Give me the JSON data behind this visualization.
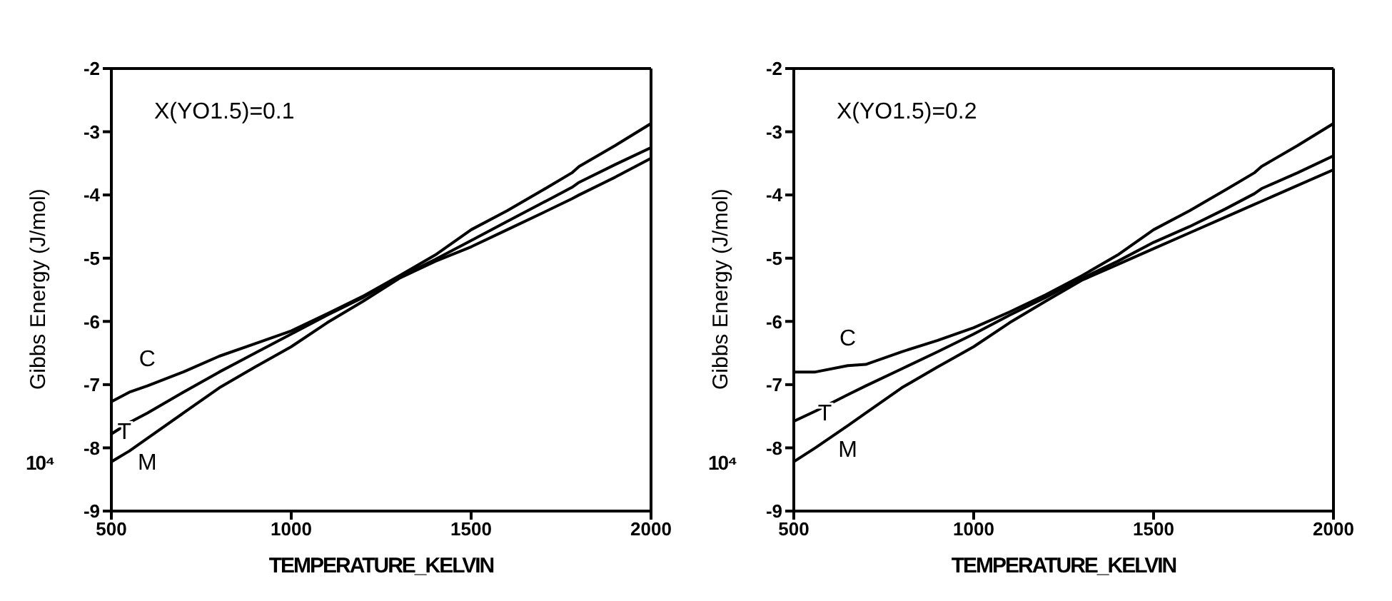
{
  "chart_data": [
    {
      "type": "line",
      "xlabel": "TEMPERATURE_KELVIN",
      "ylabel": "Gibbs Energy (J/mol)",
      "annotations": [
        "X(YO1.5)=0.1",
        "10⁴"
      ],
      "x": [
        500,
        550,
        600,
        700,
        800,
        900,
        1000,
        1100,
        1200,
        1300,
        1400,
        1500,
        1600,
        1700,
        1780,
        1800,
        1900,
        2000
      ],
      "xlim": [
        500,
        2000
      ],
      "xticks": [
        500,
        1000,
        1500,
        2000
      ],
      "ylim": [
        -9,
        -2
      ],
      "yticks": [
        -9,
        -8,
        -7,
        -6,
        -5,
        -4,
        -3,
        -2
      ],
      "marker": "none",
      "line_style": "solid",
      "series": [
        {
          "name": "C",
          "color": "#000000",
          "values": [
            -7.27,
            -7.12,
            -7.02,
            -6.8,
            -6.55,
            -6.35,
            -6.15,
            -5.88,
            -5.6,
            -5.28,
            -4.95,
            -4.55,
            -4.25,
            -3.92,
            -3.65,
            -3.55,
            -3.22,
            -2.87
          ]
        },
        {
          "name": "T",
          "color": "#000000",
          "values": [
            -7.78,
            -7.6,
            -7.45,
            -7.12,
            -6.8,
            -6.5,
            -6.2,
            -5.9,
            -5.62,
            -5.3,
            -5.02,
            -4.72,
            -4.42,
            -4.12,
            -3.88,
            -3.8,
            -3.52,
            -3.25
          ]
        },
        {
          "name": "M",
          "color": "#000000",
          "values": [
            -8.22,
            -8.05,
            -7.85,
            -7.45,
            -7.05,
            -6.72,
            -6.4,
            -6.02,
            -5.68,
            -5.32,
            -5.05,
            -4.82,
            -4.55,
            -4.28,
            -4.06,
            -4.0,
            -3.72,
            -3.42
          ]
        }
      ]
    },
    {
      "type": "line",
      "xlabel": "TEMPERATURE_KELVIN",
      "ylabel": "Gibbs Energy (J/mol)",
      "annotations": [
        "X(YO1.5)=0.2",
        "10⁴"
      ],
      "x": [
        500,
        560,
        650,
        700,
        800,
        900,
        1000,
        1100,
        1200,
        1300,
        1400,
        1500,
        1600,
        1700,
        1780,
        1800,
        1900,
        2000
      ],
      "xlim": [
        500,
        2000
      ],
      "xticks": [
        500,
        1000,
        1500,
        2000
      ],
      "ylim": [
        -9,
        -2
      ],
      "yticks": [
        -9,
        -8,
        -7,
        -6,
        -5,
        -4,
        -3,
        -2
      ],
      "marker": "none",
      "line_style": "solid",
      "series": [
        {
          "name": "C",
          "color": "#000000",
          "values": [
            -6.8,
            -6.8,
            -6.7,
            -6.68,
            -6.48,
            -6.3,
            -6.1,
            -5.85,
            -5.58,
            -5.28,
            -4.95,
            -4.55,
            -4.25,
            -3.92,
            -3.65,
            -3.55,
            -3.22,
            -2.87
          ]
        },
        {
          "name": "T",
          "color": "#000000",
          "values": [
            -7.58,
            -7.42,
            -7.16,
            -7.02,
            -6.75,
            -6.48,
            -6.2,
            -5.9,
            -5.62,
            -5.32,
            -5.05,
            -4.75,
            -4.5,
            -4.22,
            -3.98,
            -3.9,
            -3.65,
            -3.38
          ]
        },
        {
          "name": "M",
          "color": "#000000",
          "values": [
            -8.22,
            -8.0,
            -7.65,
            -7.45,
            -7.05,
            -6.72,
            -6.4,
            -6.02,
            -5.68,
            -5.35,
            -5.1,
            -4.85,
            -4.6,
            -4.35,
            -4.15,
            -4.1,
            -3.85,
            -3.6
          ]
        }
      ]
    }
  ]
}
